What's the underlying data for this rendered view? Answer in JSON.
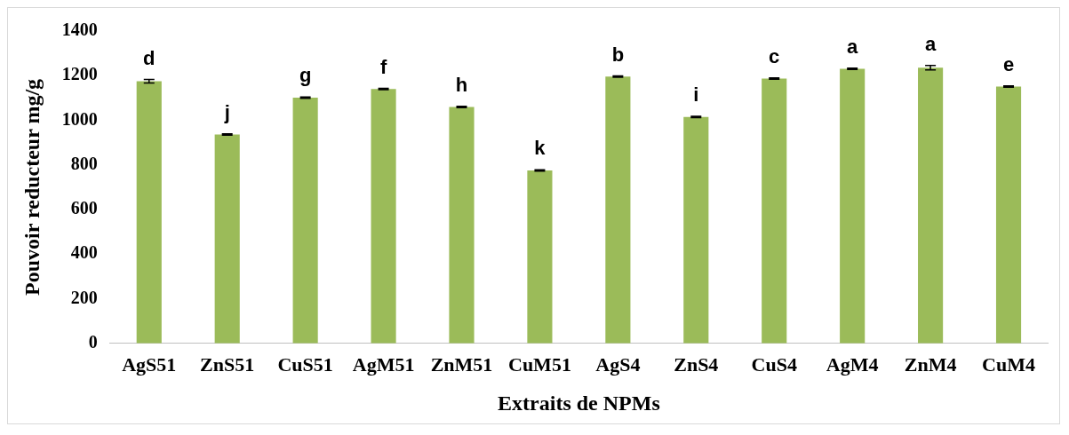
{
  "chart_data": {
    "type": "bar",
    "xlabel": "Extraits de NPMs",
    "ylabel": "Pouvoir reducteur mg/g",
    "categories": [
      "AgS51",
      "ZnS51",
      "CuS51",
      "AgM51",
      "ZnM51",
      "CuM51",
      "AgS4",
      "ZnS4",
      "CuS4",
      "AgM4",
      "ZnM4",
      "CuM4"
    ],
    "values": [
      1175,
      936,
      1102,
      1140,
      1060,
      775,
      1196,
      1015,
      1187,
      1231,
      1236,
      1151
    ],
    "errors": [
      8,
      3,
      3,
      3,
      3,
      3,
      3,
      3,
      3,
      3,
      10,
      3
    ],
    "value_labels": [
      "d",
      "j",
      "g",
      "f",
      "h",
      "k",
      "b",
      "i",
      "c",
      "a",
      "a",
      "e"
    ],
    "color": "#9bbb59",
    "ylim": [
      0,
      1400
    ],
    "yticks": [
      0,
      200,
      400,
      600,
      800,
      1000,
      1200,
      1400
    ],
    "grid": false,
    "legend": false
  }
}
